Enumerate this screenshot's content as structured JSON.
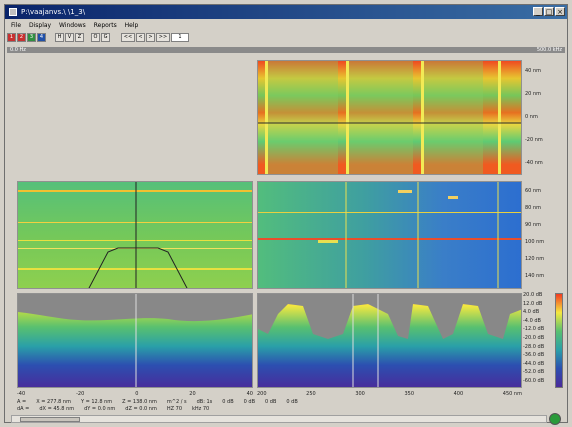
{
  "window": {
    "title": "P:\\vaajanvs.\\ \\1_3\\"
  },
  "menu": [
    "File",
    "Display",
    "Windows",
    "Reports",
    "Help"
  ],
  "toolbar": {
    "buttons": [
      "1",
      "2",
      "3",
      "4",
      "H",
      "V",
      "Z",
      "O",
      "G",
      "<<",
      "<",
      ">",
      ">>",
      "1"
    ]
  },
  "range_bar": {
    "left": "0.0 Hz",
    "right": "500.0 kHz"
  },
  "top_right_y_ticks": [
    "40 nm",
    "20 nm",
    "0 nm",
    "-20 nm",
    "-40 nm"
  ],
  "mid_right_y_ticks": [
    "60 nm",
    "80 nm",
    "90 nm",
    "100 nm",
    "120 nm",
    "140 nm"
  ],
  "colorbar_ticks": [
    "20.0 dB",
    "12.0 dB",
    "4.0 dB",
    "-4.0 dB",
    "-12.0 dB",
    "-20.0 dB",
    "-28.0 dB",
    "-36.0 dB",
    "-44.0 dB",
    "-52.0 dB",
    "-60.0 dB"
  ],
  "bottom_left_x_ticks": [
    "-40",
    "-20",
    "0",
    "20",
    "40"
  ],
  "bottom_right_x_ticks": [
    "200",
    "250",
    "300",
    "350",
    "400",
    "450 nm"
  ],
  "status": {
    "rowA": [
      "A =",
      "X = 277.8 nm",
      "Y = 12.8 nm",
      "Z = 138.0 nm",
      "m^2 / s",
      "dB: 1s",
      "0 dB",
      "0 dB",
      "0 dB",
      "0 dB"
    ],
    "rowB": [
      "dA =",
      "dX = 45.8 nm",
      "dY = 0.0 nm",
      "dZ = 0.0 nm",
      "HZ 70",
      "kHz 70"
    ]
  },
  "colors": {
    "title_start": "#0a246a",
    "title_end": "#3a6ea5",
    "background": "#d4d0c8",
    "panel_border": "#909090"
  }
}
